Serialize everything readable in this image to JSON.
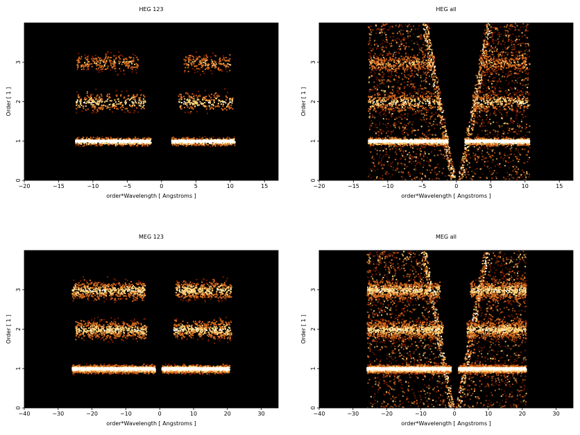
{
  "chart_data": [
    {
      "type": "heatmap",
      "title": "HEG 123",
      "xlabel": "order*Wavelength [ Angstroms ]",
      "ylabel": "Order [ 1 ]",
      "xlim": [
        -20,
        17
      ],
      "ylim": [
        0,
        4
      ],
      "xticks": [
        -20,
        -15,
        -10,
        -5,
        0,
        5,
        10,
        15
      ],
      "yticks": [
        0,
        1,
        2,
        3
      ],
      "background": "#000000",
      "bands": [
        {
          "order": 1,
          "segments": [
            [
              -12.6,
              -1.6
            ],
            [
              1.4,
              10.6
            ]
          ],
          "intensity": "high"
        },
        {
          "order": 2,
          "segments": [
            [
              -12.6,
              -2.4
            ],
            [
              2.3,
              10.3
            ]
          ],
          "intensity": "medium"
        },
        {
          "order": 3,
          "segments": [
            [
              -12.4,
              -3.5
            ],
            [
              3.2,
              10.0
            ]
          ],
          "intensity": "low"
        }
      ]
    },
    {
      "type": "heatmap",
      "title": "HEG all",
      "xlabel": "order*Wavelength [ Angstroms ]",
      "ylabel": "Order [ 1 ]",
      "xlim": [
        -20,
        17
      ],
      "ylim": [
        0,
        4
      ],
      "xticks": [
        -20,
        -15,
        -10,
        -5,
        0,
        5,
        10,
        15
      ],
      "yticks": [
        0,
        1,
        2,
        3
      ],
      "background": "#000000",
      "bands": [
        {
          "order": 1,
          "segments": [
            [
              -12.9,
              -1.3
            ],
            [
              1.2,
              10.6
            ]
          ],
          "intensity": "high"
        },
        {
          "order": 2,
          "segments": [
            [
              -12.9,
              -2.4
            ],
            [
              2.3,
              10.4
            ]
          ],
          "intensity": "medium"
        },
        {
          "order": 3,
          "segments": [
            [
              -12.9,
              -3.3
            ],
            [
              3.2,
              10.2
            ]
          ],
          "intensity": "low"
        }
      ]
    },
    {
      "type": "heatmap",
      "title": "MEG 123",
      "xlabel": "order*Wavelength [ Angstroms ]",
      "ylabel": "Order [ 1 ]",
      "xlim": [
        -40,
        35
      ],
      "ylim": [
        0,
        4
      ],
      "xticks": [
        -40,
        -30,
        -20,
        -10,
        0,
        10,
        20,
        30
      ],
      "yticks": [
        0,
        1,
        2,
        3
      ],
      "background": "#000000",
      "bands": [
        {
          "order": 1,
          "segments": [
            [
              -26,
              -1.5
            ],
            [
              0.5,
              20.5
            ]
          ],
          "intensity": "high"
        },
        {
          "order": 2,
          "segments": [
            [
              -25,
              -4
            ],
            [
              4,
              21
            ]
          ],
          "intensity": "medium"
        },
        {
          "order": 3,
          "segments": [
            [
              -26,
              -4.5
            ],
            [
              4.5,
              21
            ]
          ],
          "intensity": "medium"
        }
      ]
    },
    {
      "type": "heatmap",
      "title": "MEG all",
      "xlabel": "order*Wavelength [ Angstroms ]",
      "ylabel": "Order [ 1 ]",
      "xlim": [
        -40,
        35
      ],
      "ylim": [
        0,
        4
      ],
      "xticks": [
        -40,
        -30,
        -20,
        -10,
        0,
        10,
        20,
        30
      ],
      "yticks": [
        0,
        1,
        2,
        3
      ],
      "background": "#000000",
      "bands": [
        {
          "order": 1,
          "segments": [
            [
              -26,
              -1.2
            ],
            [
              1.0,
              21
            ]
          ],
          "intensity": "high"
        },
        {
          "order": 2,
          "segments": [
            [
              -26,
              -3.5
            ],
            [
              3.5,
              21
            ]
          ],
          "intensity": "medium"
        },
        {
          "order": 3,
          "segments": [
            [
              -26,
              -4.5
            ],
            [
              4.5,
              21
            ]
          ],
          "intensity": "medium"
        }
      ]
    }
  ],
  "colors": {
    "background": "#000000",
    "low": "#7a1a00",
    "mid": "#d2691e",
    "high": "#ffd27a",
    "peak": "#ffffff"
  }
}
